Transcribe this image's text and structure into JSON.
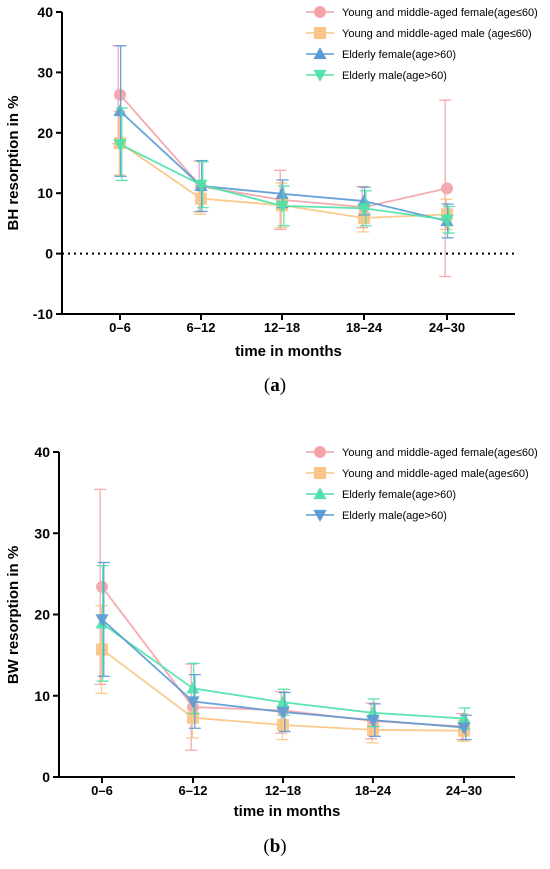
{
  "panels": [
    {
      "caption_left": "(",
      "caption_letter": "a",
      "caption_right": ")"
    },
    {
      "caption_left": "(",
      "caption_letter": "b",
      "caption_right": ")"
    }
  ],
  "chart_data": [
    {
      "type": "line",
      "title": "",
      "xlabel": "time in months",
      "ylabel": "BH resorption in %",
      "categories": [
        "0–6",
        "6–12",
        "12–18",
        "18–24",
        "24–30"
      ],
      "ylim": [
        -10,
        40
      ],
      "yticks": [
        "-10",
        "0",
        "10",
        "20",
        "30",
        "40"
      ],
      "reference_line": 0,
      "legend_position": "top-right",
      "series": [
        {
          "name": "Young and middle-aged female(age≤60)",
          "marker": "circle",
          "color": "#f4a3a8",
          "values": [
            26.3,
            11.1,
            8.9,
            7.7,
            10.8
          ],
          "error": [
            [
              18.2,
              34.4
            ],
            [
              6.9,
              15.3
            ],
            [
              4.0,
              13.8
            ],
            [
              4.3,
              11.1
            ],
            [
              -3.8,
              25.4
            ]
          ]
        },
        {
          "name": "Young and middle-aged male (age≤60)",
          "marker": "square",
          "color": "#f9c585",
          "values": [
            18.3,
            9.1,
            8.0,
            5.9,
            6.5
          ],
          "error": [
            [
              13.0,
              23.6
            ],
            [
              6.5,
              11.7
            ],
            [
              4.3,
              11.7
            ],
            [
              3.6,
              8.2
            ],
            [
              4.0,
              9.0
            ]
          ]
        },
        {
          "name": "Elderly female(age>60)",
          "marker": "triangle-up",
          "color": "#5b9bd5",
          "values": [
            23.6,
            11.2,
            9.9,
            8.7,
            5.4
          ],
          "error": [
            [
              12.8,
              34.4
            ],
            [
              7.0,
              15.4
            ],
            [
              7.6,
              12.2
            ],
            [
              6.4,
              11.0
            ],
            [
              2.6,
              8.2
            ]
          ]
        },
        {
          "name": "Elderly male(age>60)",
          "marker": "triangle-down",
          "color": "#4fe3a9",
          "values": [
            18.1,
            11.4,
            7.9,
            7.5,
            5.6
          ],
          "error": [
            [
              12.1,
              24.1
            ],
            [
              7.6,
              15.2
            ],
            [
              4.6,
              11.2
            ],
            [
              4.6,
              10.4
            ],
            [
              3.4,
              7.8
            ]
          ]
        }
      ]
    },
    {
      "type": "line",
      "title": "",
      "xlabel": "time in months",
      "ylabel": "BW resorption in %",
      "categories": [
        "0–6",
        "6–12",
        "12–18",
        "18–24",
        "24–30"
      ],
      "ylim": [
        0,
        40
      ],
      "yticks": [
        "0",
        "10",
        "20",
        "30",
        "40"
      ],
      "legend_position": "top-right",
      "series": [
        {
          "name": "Young and middle-aged female(age≤60)",
          "marker": "circle",
          "color": "#f4a3a8",
          "values": [
            23.4,
            8.6,
            8.2,
            6.9,
            6.2
          ],
          "error": [
            [
              11.4,
              35.4
            ],
            [
              3.3,
              13.9
            ],
            [
              5.4,
              10.5
            ],
            [
              4.7,
              9.1
            ],
            [
              4.6,
              7.8
            ]
          ]
        },
        {
          "name": "Young and middle-aged male(age≤60)",
          "marker": "square",
          "color": "#f9c585",
          "values": [
            15.7,
            7.3,
            6.4,
            5.8,
            5.7
          ],
          "error": [
            [
              10.3,
              21.1
            ],
            [
              4.8,
              9.8
            ],
            [
              4.6,
              8.2
            ],
            [
              4.2,
              7.4
            ],
            [
              4.4,
              7.0
            ]
          ]
        },
        {
          "name": "Elderly female(age>60)",
          "marker": "triangle-up",
          "color": "#4fe3a9",
          "values": [
            18.9,
            10.9,
            9.2,
            7.9,
            7.2
          ],
          "error": [
            [
              11.8,
              26.0
            ],
            [
              7.8,
              14.0
            ],
            [
              7.6,
              10.8
            ],
            [
              6.2,
              9.6
            ],
            [
              5.9,
              8.5
            ]
          ]
        },
        {
          "name": "Elderly male(age>60)",
          "marker": "triangle-down",
          "color": "#5b9bd5",
          "values": [
            19.4,
            9.3,
            8.0,
            7.0,
            6.1
          ],
          "error": [
            [
              12.4,
              26.4
            ],
            [
              6.0,
              12.6
            ],
            [
              5.6,
              10.4
            ],
            [
              5.0,
              9.0
            ],
            [
              4.6,
              7.6
            ]
          ]
        }
      ]
    }
  ]
}
